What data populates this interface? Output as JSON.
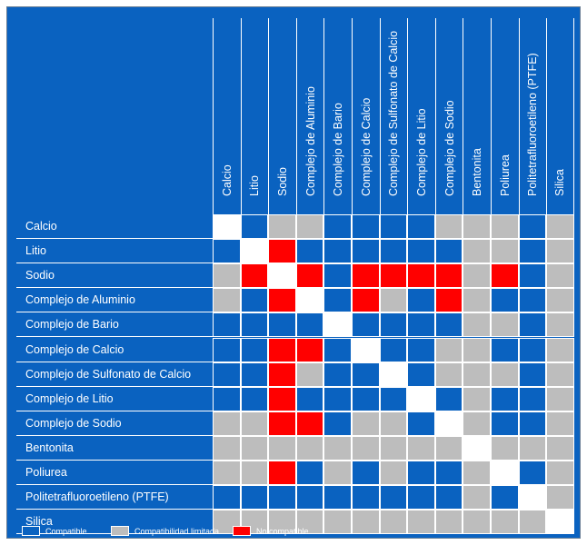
{
  "colors": {
    "background": "#0a62c0",
    "compatible": "#0a62c0",
    "limited": "#bdbdbd",
    "incompatible": "#ff0000",
    "diagonal": "#ffffff"
  },
  "chart_data": {
    "type": "heatmap",
    "title": "",
    "xlabel": "",
    "ylabel": "",
    "columns": [
      "Calcio",
      "Litio",
      "Sodio",
      "Complejo de Aluminio",
      "Complejo de Bario",
      "Complejo de Calcio",
      "Complejo de Sulfonato de Calcio",
      "Complejo de Litio",
      "Complejo de Sodio",
      "Bentonita",
      "Poliurea",
      "Politetrafluoroetileno (PTFE)",
      "Silica"
    ],
    "rows": [
      "Calcio",
      "Litio",
      "Sodio",
      "Complejo de Aluminio",
      "Complejo de Bario",
      "Complejo de Calcio",
      "Complejo de Sulfonato de Calcio",
      "Complejo de Litio",
      "Complejo de Sodio",
      "Bentonita",
      "Poliurea",
      "Politetrafluoroetileno (PTFE)",
      "Silica"
    ],
    "value_legend": {
      "C": "Compatible",
      "L": "Compatibilidad limitada",
      "N": "No compatible",
      "D": ""
    },
    "matrix": [
      [
        "D",
        "C",
        "L",
        "L",
        "C",
        "C",
        "C",
        "C",
        "L",
        "L",
        "L",
        "C",
        "L"
      ],
      [
        "C",
        "D",
        "N",
        "C",
        "C",
        "C",
        "C",
        "C",
        "C",
        "L",
        "L",
        "C",
        "L"
      ],
      [
        "L",
        "N",
        "D",
        "N",
        "C",
        "N",
        "N",
        "N",
        "N",
        "L",
        "N",
        "C",
        "L"
      ],
      [
        "L",
        "C",
        "N",
        "D",
        "C",
        "N",
        "L",
        "C",
        "N",
        "L",
        "C",
        "C",
        "L"
      ],
      [
        "C",
        "C",
        "C",
        "C",
        "D",
        "C",
        "C",
        "C",
        "C",
        "L",
        "L",
        "C",
        "L"
      ],
      [
        "C",
        "C",
        "N",
        "N",
        "C",
        "D",
        "C",
        "C",
        "L",
        "L",
        "C",
        "C",
        "L"
      ],
      [
        "C",
        "C",
        "N",
        "L",
        "C",
        "C",
        "D",
        "C",
        "L",
        "L",
        "L",
        "C",
        "L"
      ],
      [
        "C",
        "C",
        "N",
        "C",
        "C",
        "C",
        "C",
        "D",
        "C",
        "L",
        "C",
        "C",
        "L"
      ],
      [
        "L",
        "L",
        "N",
        "N",
        "C",
        "L",
        "L",
        "C",
        "D",
        "L",
        "C",
        "C",
        "L"
      ],
      [
        "L",
        "L",
        "L",
        "L",
        "L",
        "L",
        "L",
        "L",
        "L",
        "D",
        "L",
        "L",
        "L"
      ],
      [
        "L",
        "L",
        "N",
        "C",
        "L",
        "C",
        "L",
        "C",
        "C",
        "L",
        "D",
        "C",
        "L"
      ],
      [
        "C",
        "C",
        "C",
        "C",
        "C",
        "C",
        "C",
        "C",
        "C",
        "L",
        "C",
        "D",
        "L"
      ],
      [
        "L",
        "L",
        "L",
        "L",
        "L",
        "L",
        "L",
        "L",
        "L",
        "L",
        "L",
        "L",
        "D"
      ]
    ]
  },
  "legend": {
    "items": [
      {
        "key": "C",
        "label": "Compatible"
      },
      {
        "key": "L",
        "label": "Compatibilidad limitada"
      },
      {
        "key": "N",
        "label": "No compatible"
      }
    ]
  }
}
